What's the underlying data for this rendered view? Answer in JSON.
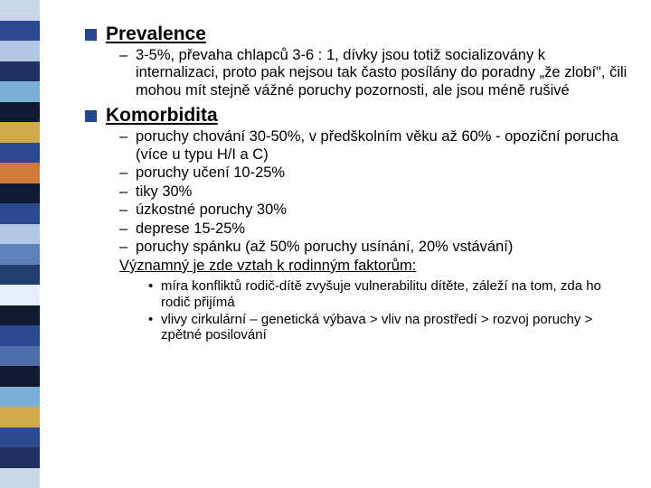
{
  "sidebar_colors": [
    "#c9d6e8",
    "#2b4a8f",
    "#b0c7e6",
    "#1f3262",
    "#7ab0d8",
    "#0f1a30",
    "#cfa94a",
    "#2b4a8f",
    "#d07a3a",
    "#0f1a30",
    "#2b4a8f",
    "#b0c7e6",
    "#5d82b8",
    "#243e70",
    "#e5efff",
    "#0f1a30",
    "#2b4a8f",
    "#4c6ea8",
    "#0f1a30",
    "#7ab0d8",
    "#cfa94a",
    "#2b4a8f",
    "#1f3262",
    "#c9d6e8"
  ],
  "sections": [
    {
      "heading": "Prevalence",
      "items": [
        "3-5%, převaha chlapců 3-6 : 1, dívky jsou totiž socializovány k internalizaci, proto pak nejsou tak často posílány do poradny „že zlobí\", čili mohou mít stejně vážné poruchy pozornosti, ale jsou méně rušivé"
      ]
    },
    {
      "heading": "Komorbidita",
      "items": [
        "poruchy chování 30-50%, v předškolním věku až 60% - opoziční porucha (více u typu H/I a C)",
        "poruchy učení 10-25%",
        "tiky 30%",
        "úzkostné poruchy 30%",
        "deprese 15-25%",
        "poruchy spánku (až 50% poruchy usínání, 20% vstávání)"
      ],
      "emph": "Významný je zde vztah k rodinným faktorům:",
      "bullets": [
        "míra konfliktů rodič-dítě zvyšuje vulnerabilitu dítěte, záleží na tom, zda ho rodič přijímá",
        "vlivy cirkulární – genetická výbava > vliv na prostředí > rozvoj poruchy > zpětné posilování"
      ]
    }
  ]
}
